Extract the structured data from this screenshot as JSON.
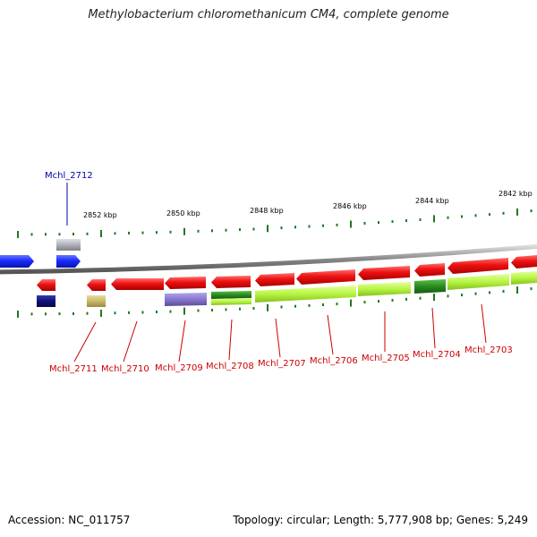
{
  "title": "Methylobacterium chloromethanicum CM4, complete genome",
  "accession": "Accession: NC_011757",
  "summary": "Topology: circular; Length: 5,777,908 bp; Genes: 5,249",
  "scale_labels": [
    "2852 kbp",
    "2850 kbp",
    "2848 kbp",
    "2846 kbp",
    "2844 kbp",
    "2842 kbp"
  ],
  "gene_labels": {
    "top": [
      "Mchl_2712"
    ],
    "bottom": [
      "Mchl_2711",
      "Mchl_2710",
      "Mchl_2709",
      "Mchl_2708",
      "Mchl_2707",
      "Mchl_2706",
      "Mchl_2705",
      "Mchl_2704",
      "Mchl_2703"
    ]
  },
  "colors": {
    "forward_gene": "#1a2cff",
    "reverse_gene": "#ee1111",
    "cog_light_green": "#b6f542",
    "cog_dark_green": "#2a8a1f",
    "cog_purple": "#8877cc",
    "cog_navy": "#10107a",
    "cog_khaki": "#c8b86a",
    "cog_gray": "#b0b0b8",
    "label_reverse": "#cc0000",
    "label_forward": "#0000aa",
    "tick": "#227722"
  }
}
